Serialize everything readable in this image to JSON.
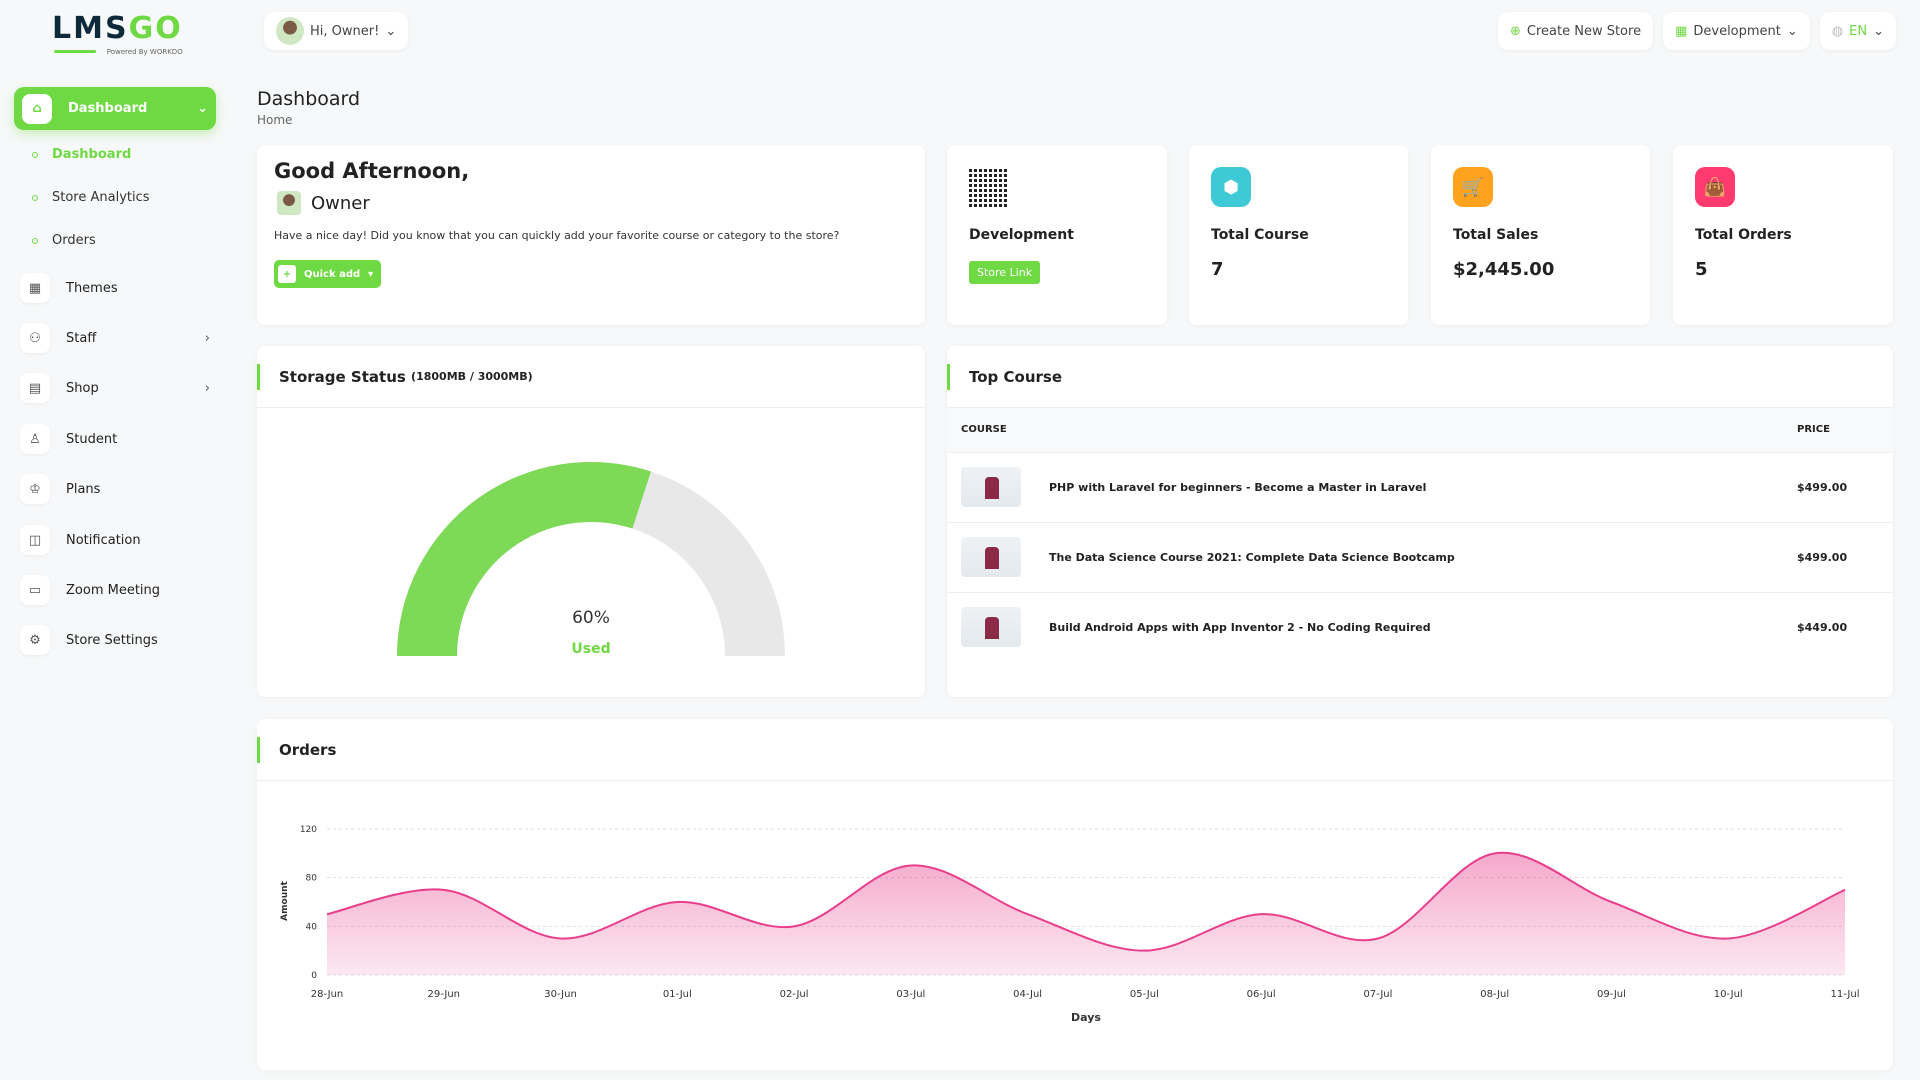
{
  "brand": {
    "logo_a": "LMS",
    "logo_b": "GO",
    "powered": "Powered By WORKDO"
  },
  "header": {
    "greeting": "Hi, Owner!",
    "create_store": "Create New Store",
    "store": "Development",
    "language": "EN"
  },
  "sidebar": {
    "active": "Dashboard",
    "sub": [
      "Dashboard",
      "Store Analytics",
      "Orders"
    ],
    "items": [
      {
        "label": "Themes",
        "icon": "grid-icon"
      },
      {
        "label": "Staff",
        "icon": "users-icon",
        "chevron": true
      },
      {
        "label": "Shop",
        "icon": "shop-icon",
        "chevron": true
      },
      {
        "label": "Student",
        "icon": "user-icon"
      },
      {
        "label": "Plans",
        "icon": "award-icon"
      },
      {
        "label": "Notification",
        "icon": "bell-icon"
      },
      {
        "label": "Zoom Meeting",
        "icon": "video-icon"
      },
      {
        "label": "Store Settings",
        "icon": "gear-icon"
      }
    ]
  },
  "page": {
    "title": "Dashboard",
    "breadcrumb": "Home"
  },
  "welcome": {
    "greeting": "Good Afternoon,",
    "name": "Owner",
    "message": "Have a nice day! Did you know that you can quickly add your favorite course or category to the store?",
    "quick_add": "Quick add"
  },
  "stats": [
    {
      "label": "Development",
      "button": "Store Link"
    },
    {
      "label": "Total Course",
      "value": "7",
      "color": "#3ec9d6"
    },
    {
      "label": "Total Sales",
      "value": "$2,445.00",
      "color": "#ffa21d"
    },
    {
      "label": "Total Orders",
      "value": "5",
      "color": "#ff3a6e"
    }
  ],
  "storage": {
    "title": "Storage Status",
    "detail": "(1800MB / 3000MB)",
    "percent": "60%",
    "percent_value": 60,
    "used_label": "Used"
  },
  "top_course": {
    "title": "Top Course",
    "col_course": "COURSE",
    "col_price": "PRICE",
    "rows": [
      {
        "course": "PHP with Laravel for beginners - Become a Master in Laravel",
        "price": "$499.00"
      },
      {
        "course": "The Data Science Course 2021: Complete Data Science Bootcamp",
        "price": "$499.00"
      },
      {
        "course": "Build Android Apps with App Inventor 2 - No Coding Required",
        "price": "$449.00"
      }
    ]
  },
  "orders": {
    "title": "Orders"
  },
  "chart_data": {
    "type": "area",
    "xlabel": "Days",
    "ylabel": "Amount",
    "ylim": [
      0,
      120
    ],
    "yticks": [
      "0",
      "40",
      "80",
      "120"
    ],
    "categories": [
      "28-Jun",
      "29-Jun",
      "30-Jun",
      "01-Jul",
      "02-Jul",
      "03-Jul",
      "04-Jul",
      "05-Jul",
      "06-Jul",
      "07-Jul",
      "08-Jul",
      "09-Jul",
      "10-Jul",
      "11-Jul"
    ],
    "values": [
      50,
      70,
      30,
      60,
      40,
      90,
      50,
      20,
      50,
      30,
      100,
      60,
      30,
      70
    ],
    "color": "#e83e8c",
    "grid": true
  }
}
